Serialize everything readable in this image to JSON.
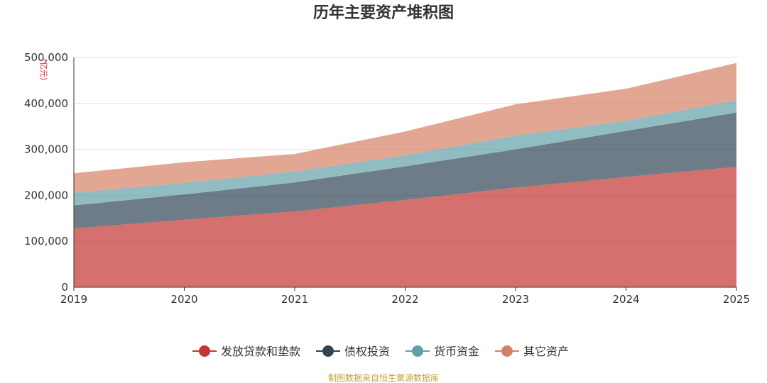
{
  "chart_data": {
    "type": "area",
    "title": "历年主要资产堆积图",
    "ylabel": "(亿元)",
    "xlabel": "",
    "x": [
      "2019",
      "2020",
      "2021",
      "2022",
      "2023",
      "2024",
      "2025"
    ],
    "ylim": [
      0,
      500000
    ],
    "yticks": [
      "0",
      "100,000",
      "200,000",
      "300,000",
      "400,000",
      "500,000"
    ],
    "ytick_values": [
      0,
      100000,
      200000,
      300000,
      400000,
      500000
    ],
    "grid": true,
    "stacked": true,
    "legend_position": "bottom",
    "series": [
      {
        "name": "发放贷款和垫款",
        "color": "#c23531",
        "values": [
          128000,
          147000,
          165000,
          190000,
          217000,
          240000,
          262000
        ]
      },
      {
        "name": "债权投资",
        "color": "#2f4554",
        "values": [
          50000,
          55000,
          63000,
          73000,
          83000,
          100000,
          118000
        ]
      },
      {
        "name": "货币资金",
        "color": "#61a0a8",
        "values": [
          28000,
          25000,
          24000,
          24000,
          30000,
          22000,
          27000
        ]
      },
      {
        "name": "其它资产",
        "color": "#d48265",
        "values": [
          42000,
          45000,
          38000,
          52000,
          68000,
          70000,
          81000
        ]
      }
    ]
  },
  "source_text": "制图数据来自恒生聚源数据库"
}
